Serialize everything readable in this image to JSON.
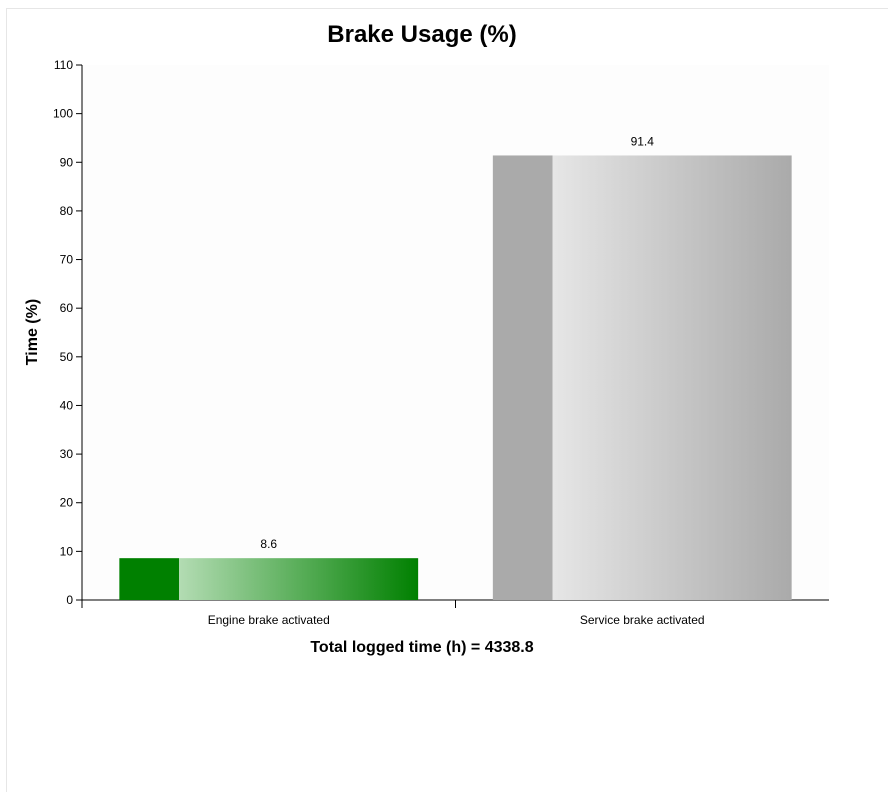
{
  "chart_data": {
    "type": "bar",
    "title": "Brake Usage (%)",
    "ylabel": "Time (%)",
    "xlabel": "Total logged time (h) = 4338.8",
    "categories": [
      "Engine brake activated",
      "Service brake activated"
    ],
    "values": [
      8.6,
      91.4
    ],
    "data_labels": [
      "8.6",
      "91.4"
    ],
    "ylim": [
      0,
      110
    ],
    "yticks": [
      0,
      10,
      20,
      30,
      40,
      50,
      60,
      70,
      80,
      90,
      100,
      110
    ],
    "grid": false,
    "legend": "none",
    "bar_colors": [
      {
        "dark": "#008000",
        "light": "#b3dcb3"
      },
      {
        "dark": "#aaaaaa",
        "light": "#e6e6e6"
      }
    ]
  }
}
